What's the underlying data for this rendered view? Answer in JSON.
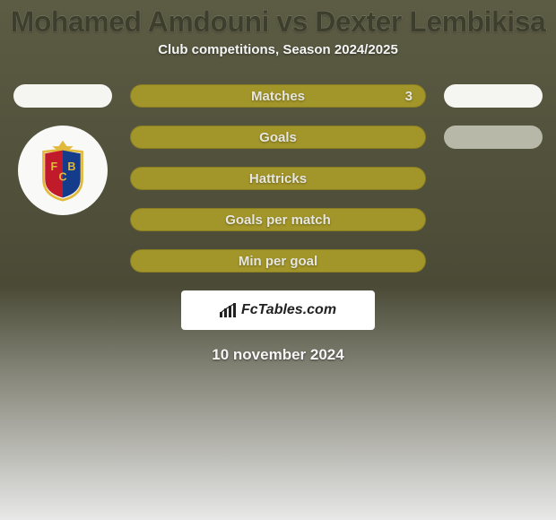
{
  "colors": {
    "bg_top": "#5c5c44",
    "bg_mid": "#4a4a36",
    "bg_bottom": "#e8e8e8",
    "bar_fill": "#a29529",
    "bar_text": "#e6e6de",
    "pill_white": "#f5f5f2",
    "pill_grey": "#b8b8a8",
    "title_color": "#3e3e2c",
    "fctables_bg": "#ffffff",
    "fctables_text": "#222222"
  },
  "title": "Mohamed Amdouni vs Dexter Lembikisa",
  "subtitle": "Club competitions, Season 2024/2025",
  "date": "10 november 2024",
  "fctables_label": "FcTables.com",
  "rows": [
    {
      "label": "Matches",
      "value": "3",
      "left_color": "#f5f5f2",
      "right_color": "#f5f5f2"
    },
    {
      "label": "Goals",
      "value": "",
      "left_color": null,
      "right_color": "#b8b8a8"
    },
    {
      "label": "Hattricks",
      "value": "",
      "left_color": null,
      "right_color": null
    },
    {
      "label": "Goals per match",
      "value": "",
      "left_color": null,
      "right_color": null
    },
    {
      "label": "Min per goal",
      "value": "",
      "left_color": null,
      "right_color": null
    }
  ],
  "logo": {
    "star_color": "#e2b93a",
    "shield_border": "#e2b93a",
    "shield_left": "#c11a2b",
    "shield_right": "#143c8a",
    "letters": "FCB"
  }
}
